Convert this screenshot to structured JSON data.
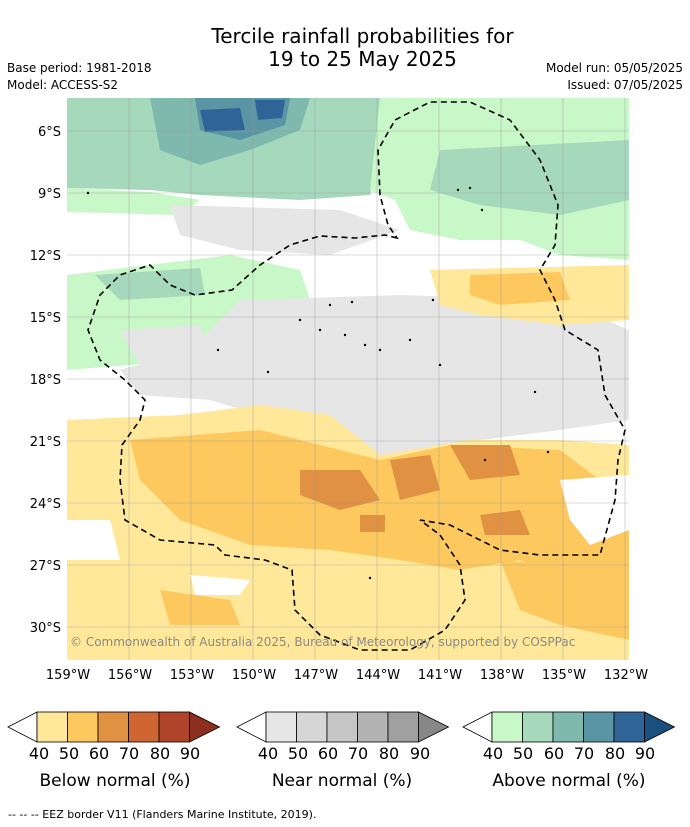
{
  "title": {
    "line1": "Tercile rainfall probabilities for",
    "line2": "19 to 25 May 2025"
  },
  "meta": {
    "base_period": "Base period: 1981-2018",
    "model": "Model: ACCESS-S2",
    "model_run": "Model run: 05/05/2025",
    "issued": "Issued: 07/05/2025"
  },
  "map": {
    "lat_labels": [
      "6°S",
      "9°S",
      "12°S",
      "15°S",
      "18°S",
      "21°S",
      "24°S",
      "27°S",
      "30°S"
    ],
    "lon_labels": [
      "159°W",
      "156°W",
      "153°W",
      "150°W",
      "147°W",
      "144°W",
      "141°W",
      "138°W",
      "135°W",
      "132°W"
    ],
    "copyright": "© Commonwealth of Australia 2025, Bureau of Meteorology, supported by COSPPac",
    "grid": true
  },
  "colorbars": [
    {
      "label": "Below normal (%)",
      "ticks": [
        "40",
        "50",
        "60",
        "70",
        "80",
        "90"
      ],
      "colors": [
        "#ffe89a",
        "#fdc85e",
        "#e09142",
        "#cf6530",
        "#b0442a",
        "#8c2f1e"
      ]
    },
    {
      "label": "Near normal (%)",
      "ticks": [
        "40",
        "50",
        "60",
        "70",
        "80",
        "90"
      ],
      "colors": [
        "#e6e6e6",
        "#d6d6d6",
        "#c6c6c6",
        "#b3b3b3",
        "#a0a0a0",
        "#878787"
      ]
    },
    {
      "label": "Above normal (%)",
      "ticks": [
        "40",
        "50",
        "60",
        "70",
        "80",
        "90"
      ],
      "colors": [
        "#c8f7c8",
        "#a6d8bc",
        "#7fb8ad",
        "#5a95a3",
        "#2e6497",
        "#1a4f7f"
      ]
    }
  ],
  "footer": "--  --  -- EEZ border V11 (Flanders Marine Institute, 2019)."
}
